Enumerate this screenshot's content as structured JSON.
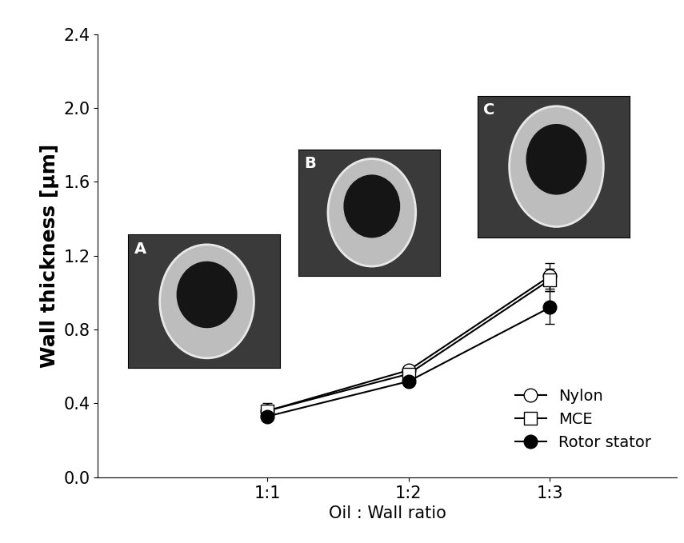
{
  "chart_data": {
    "type": "line",
    "x_label": "Oil : Wall ratio",
    "y_label": "Wall thickness [μm]",
    "categories": [
      "1:1",
      "1:2",
      "1:3"
    ],
    "series": [
      {
        "name": "Nylon",
        "color": "#000000",
        "marker": "circle_open",
        "values": [
          0.36,
          0.58,
          1.09
        ],
        "errors": [
          0.04,
          0.02,
          0.07
        ]
      },
      {
        "name": "MCE",
        "color": "#000000",
        "marker": "square_open",
        "values": [
          0.36,
          0.56,
          1.07
        ],
        "errors": [
          0.03,
          0.02,
          0.06
        ]
      },
      {
        "name": "Rotor stator",
        "color": "#000000",
        "marker": "circle",
        "values": [
          0.33,
          0.52,
          0.92
        ],
        "errors": [
          0.02,
          0.02,
          0.09
        ]
      }
    ],
    "ylim": [
      0.0,
      2.4
    ],
    "yticks": [
      0.0,
      0.4,
      0.8,
      1.2,
      1.6,
      2.0,
      2.4
    ],
    "legend": "lower right",
    "grid": false,
    "annotations": [
      "A",
      "B",
      "C"
    ]
  }
}
